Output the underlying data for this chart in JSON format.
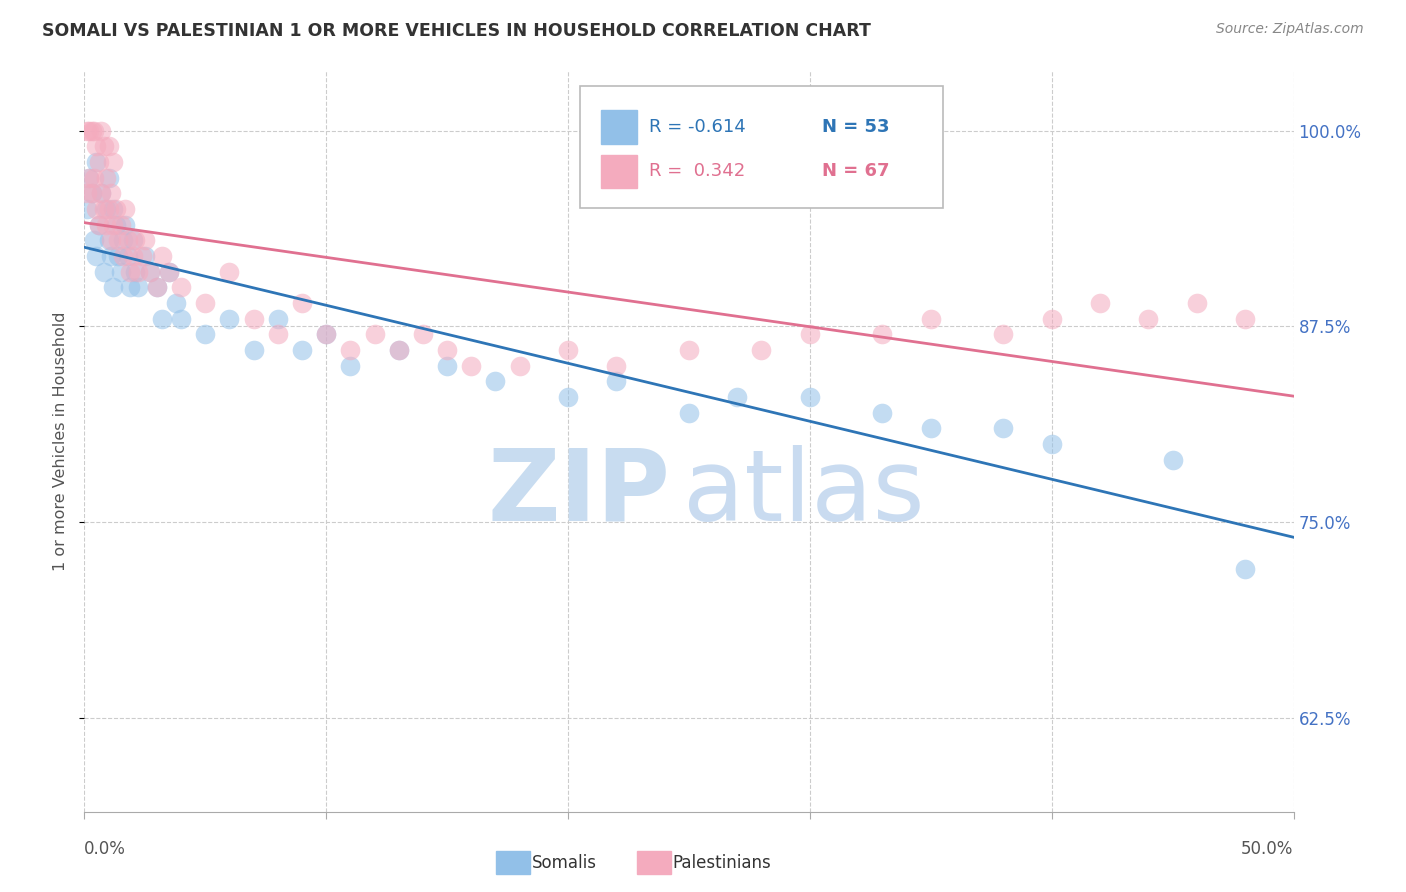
{
  "title": "SOMALI VS PALESTINIAN 1 OR MORE VEHICLES IN HOUSEHOLD CORRELATION CHART",
  "source": "Source: ZipAtlas.com",
  "ylabel": "1 or more Vehicles in Household",
  "yticks": [
    0.625,
    0.75,
    0.875,
    1.0
  ],
  "ytick_labels": [
    "62.5%",
    "75.0%",
    "87.5%",
    "100.0%"
  ],
  "xlim": [
    0.0,
    0.5
  ],
  "ylim": [
    0.565,
    1.038
  ],
  "somali_color": "#92C0E8",
  "palestinian_color": "#F4ABBE",
  "somali_line_color": "#2E75B6",
  "palestinian_line_color": "#E07090",
  "somali_label": "Somalis",
  "palestinian_label": "Palestinians",
  "r_somali": -0.614,
  "n_somali": 53,
  "r_palestinian": 0.342,
  "n_palestinian": 67,
  "grid_color": "#CCCCCC",
  "title_color": "#333333",
  "axis_label_color": "#555555",
  "right_tick_color": "#4472C4",
  "bottom_tick_color": "#555555",
  "somali_x": [
    0.001,
    0.002,
    0.003,
    0.004,
    0.005,
    0.005,
    0.006,
    0.007,
    0.008,
    0.009,
    0.01,
    0.01,
    0.011,
    0.012,
    0.012,
    0.013,
    0.014,
    0.015,
    0.016,
    0.017,
    0.018,
    0.019,
    0.02,
    0.021,
    0.022,
    0.025,
    0.027,
    0.03,
    0.032,
    0.035,
    0.038,
    0.04,
    0.05,
    0.06,
    0.07,
    0.08,
    0.09,
    0.1,
    0.11,
    0.13,
    0.15,
    0.17,
    0.2,
    0.22,
    0.25,
    0.27,
    0.3,
    0.33,
    0.35,
    0.38,
    0.4,
    0.45,
    0.48
  ],
  "somali_y": [
    0.95,
    0.97,
    0.96,
    0.93,
    0.98,
    0.92,
    0.94,
    0.96,
    0.91,
    0.95,
    0.93,
    0.97,
    0.92,
    0.95,
    0.9,
    0.94,
    0.92,
    0.91,
    0.93,
    0.94,
    0.92,
    0.9,
    0.93,
    0.91,
    0.9,
    0.92,
    0.91,
    0.9,
    0.88,
    0.91,
    0.89,
    0.88,
    0.87,
    0.88,
    0.86,
    0.88,
    0.86,
    0.87,
    0.85,
    0.86,
    0.85,
    0.84,
    0.83,
    0.84,
    0.82,
    0.83,
    0.83,
    0.82,
    0.81,
    0.81,
    0.8,
    0.79,
    0.72
  ],
  "palestinian_x": [
    0.001,
    0.001,
    0.002,
    0.002,
    0.003,
    0.003,
    0.004,
    0.004,
    0.005,
    0.005,
    0.006,
    0.006,
    0.007,
    0.007,
    0.008,
    0.008,
    0.009,
    0.009,
    0.01,
    0.01,
    0.011,
    0.011,
    0.012,
    0.012,
    0.013,
    0.014,
    0.015,
    0.016,
    0.017,
    0.018,
    0.019,
    0.02,
    0.021,
    0.022,
    0.024,
    0.025,
    0.027,
    0.03,
    0.032,
    0.035,
    0.04,
    0.05,
    0.06,
    0.07,
    0.08,
    0.09,
    0.1,
    0.11,
    0.12,
    0.13,
    0.14,
    0.15,
    0.16,
    0.18,
    0.2,
    0.22,
    0.25,
    0.28,
    0.3,
    0.33,
    0.35,
    0.38,
    0.4,
    0.42,
    0.44,
    0.46,
    0.48
  ],
  "palestinian_y": [
    0.96,
    1.0,
    0.97,
    1.0,
    0.96,
    1.0,
    0.97,
    1.0,
    0.95,
    0.99,
    0.94,
    0.98,
    0.96,
    1.0,
    0.95,
    0.99,
    0.94,
    0.97,
    0.95,
    0.99,
    0.93,
    0.96,
    0.94,
    0.98,
    0.95,
    0.93,
    0.94,
    0.92,
    0.95,
    0.93,
    0.91,
    0.92,
    0.93,
    0.91,
    0.92,
    0.93,
    0.91,
    0.9,
    0.92,
    0.91,
    0.9,
    0.89,
    0.91,
    0.88,
    0.87,
    0.89,
    0.87,
    0.86,
    0.87,
    0.86,
    0.87,
    0.86,
    0.85,
    0.85,
    0.86,
    0.85,
    0.86,
    0.86,
    0.87,
    0.87,
    0.88,
    0.87,
    0.88,
    0.89,
    0.88,
    0.89,
    0.88
  ]
}
